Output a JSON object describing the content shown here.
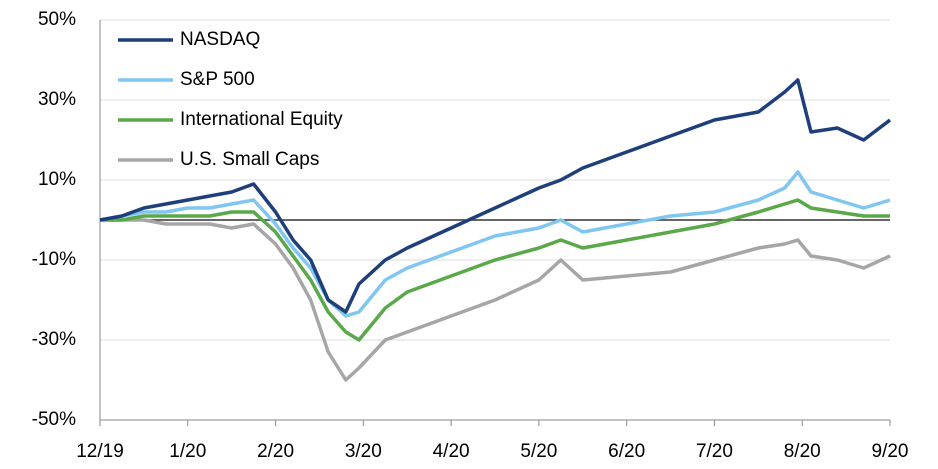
{
  "chart_data": {
    "type": "line",
    "x": [
      0,
      0.25,
      0.5,
      0.75,
      1,
      1.25,
      1.5,
      1.75,
      2,
      2.2,
      2.4,
      2.6,
      2.8,
      2.95,
      3.25,
      3.5,
      4,
      4.5,
      5,
      5.25,
      5.5,
      6,
      6.5,
      7,
      7.5,
      7.8,
      7.95,
      8.1,
      8.4,
      8.7,
      9
    ],
    "series": [
      {
        "name": "NASDAQ",
        "color": "#1f3f7a",
        "values": [
          0,
          1,
          3,
          4,
          5,
          6,
          7,
          9,
          2,
          -5,
          -10,
          -20,
          -23,
          -16,
          -10,
          -7,
          -2,
          3,
          8,
          10,
          13,
          17,
          21,
          25,
          27,
          32,
          35,
          22,
          23,
          20,
          25
        ]
      },
      {
        "name": "S&P 500",
        "color": "#7fc6f0",
        "values": [
          0,
          1,
          2,
          2,
          3,
          3,
          4,
          5,
          -1,
          -7,
          -12,
          -20,
          -24,
          -23,
          -15,
          -12,
          -8,
          -4,
          -2,
          0,
          -3,
          -1,
          1,
          2,
          5,
          8,
          12,
          7,
          5,
          3,
          5
        ]
      },
      {
        "name": "International Equity",
        "color": "#5aa84a",
        "values": [
          0,
          0,
          1,
          1,
          1,
          1,
          2,
          2,
          -3,
          -9,
          -15,
          -23,
          -28,
          -30,
          -22,
          -18,
          -14,
          -10,
          -7,
          -5,
          -7,
          -5,
          -3,
          -1,
          2,
          4,
          5,
          3,
          2,
          1,
          1
        ]
      },
      {
        "name": "U.S. Small Caps",
        "color": "#a6a6a6",
        "values": [
          0,
          0,
          0,
          -1,
          -1,
          -1,
          -2,
          -1,
          -6,
          -12,
          -20,
          -33,
          -40,
          -37,
          -30,
          -28,
          -24,
          -20,
          -15,
          -10,
          -15,
          -14,
          -13,
          -10,
          -7,
          -6,
          -5,
          -9,
          -10,
          -12,
          -9
        ]
      }
    ],
    "xlim": [
      0,
      9
    ],
    "xticks": [
      {
        "value": 0,
        "label": "12/19"
      },
      {
        "value": 1,
        "label": "1/20"
      },
      {
        "value": 2,
        "label": "2/20"
      },
      {
        "value": 3,
        "label": "3/20"
      },
      {
        "value": 4,
        "label": "4/20"
      },
      {
        "value": 5,
        "label": "5/20"
      },
      {
        "value": 6,
        "label": "6/20"
      },
      {
        "value": 7,
        "label": "7/20"
      },
      {
        "value": 8,
        "label": "8/20"
      },
      {
        "value": 9,
        "label": "9/20"
      }
    ],
    "ylim": [
      -50,
      50
    ],
    "yticks": [
      {
        "value": 50,
        "label": "50%"
      },
      {
        "value": 30,
        "label": "30%"
      },
      {
        "value": 10,
        "label": "10%"
      },
      {
        "value": -10,
        "label": "-10%"
      },
      {
        "value": -30,
        "label": "-30%"
      },
      {
        "value": -50,
        "label": "-50%"
      }
    ],
    "grid": true,
    "legend": "top-left"
  }
}
